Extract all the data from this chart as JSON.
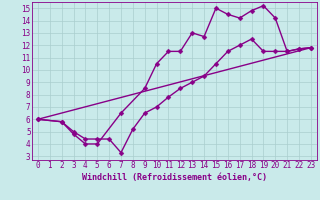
{
  "background_color": "#c9eaea",
  "grid_color": "#aacece",
  "line_color": "#880088",
  "xlabel": "Windchill (Refroidissement éolien,°C)",
  "xlim": [
    -0.5,
    23.5
  ],
  "ylim": [
    2.7,
    15.5
  ],
  "xticks": [
    0,
    1,
    2,
    3,
    4,
    5,
    6,
    7,
    8,
    9,
    10,
    11,
    12,
    13,
    14,
    15,
    16,
    17,
    18,
    19,
    20,
    21,
    22,
    23
  ],
  "yticks": [
    3,
    4,
    5,
    6,
    7,
    8,
    9,
    10,
    11,
    12,
    13,
    14,
    15
  ],
  "line1_x": [
    0,
    2,
    3,
    4,
    5,
    6,
    7,
    8,
    9,
    10,
    11,
    12,
    13,
    14,
    15,
    16,
    17,
    18,
    19,
    20,
    21,
    22,
    23
  ],
  "line1_y": [
    6,
    5.8,
    5.0,
    4.4,
    4.4,
    4.4,
    3.3,
    5.2,
    6.5,
    7.0,
    7.8,
    8.5,
    9.0,
    9.5,
    10.5,
    11.5,
    12.0,
    12.5,
    11.5,
    11.5,
    11.5,
    11.7,
    11.8
  ],
  "line2_x": [
    0,
    2,
    3,
    4,
    5,
    7,
    9,
    10,
    11,
    12,
    13,
    14,
    15,
    16,
    17,
    18,
    19,
    20,
    21,
    22,
    23
  ],
  "line2_y": [
    6,
    5.8,
    4.8,
    4.0,
    4.0,
    6.5,
    8.5,
    10.5,
    11.5,
    11.5,
    13.0,
    12.7,
    15.0,
    14.5,
    14.2,
    14.8,
    15.2,
    14.2,
    11.5,
    11.7,
    11.8
  ],
  "line3_x": [
    0,
    23
  ],
  "line3_y": [
    6.0,
    11.8
  ],
  "marker": "D",
  "markersize": 2.5,
  "linewidth": 1.0,
  "xlabel_fontsize": 6.0,
  "tick_fontsize": 5.5
}
